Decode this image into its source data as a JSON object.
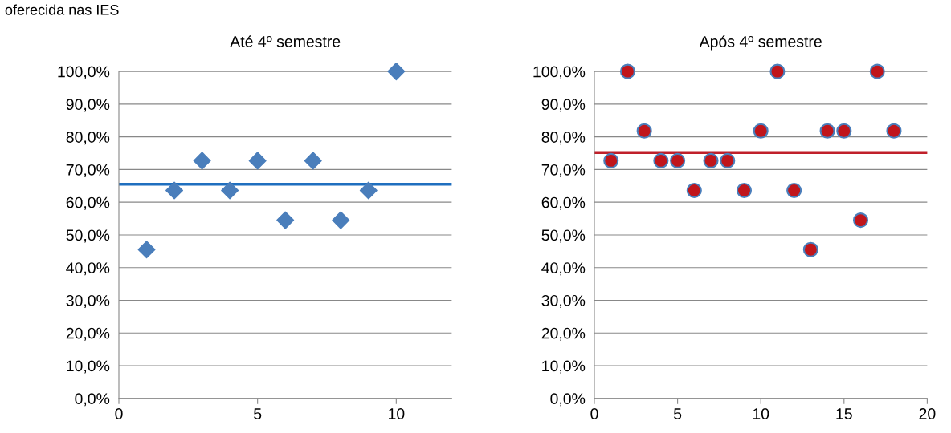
{
  "chart_data": [
    {
      "type": "scatter",
      "title": "Até 4º semestre",
      "annotations": [
        "oferecida nas IES"
      ],
      "x": [
        1,
        2,
        3,
        4,
        5,
        6,
        7,
        8,
        9,
        10
      ],
      "series": [
        {
          "color": "#4a7ebb",
          "marker": "diamond",
          "values": [
            45.5,
            63.6,
            72.7,
            63.6,
            72.7,
            54.5,
            72.7,
            54.5,
            63.6,
            100
          ]
        }
      ],
      "xlim": [
        0,
        12
      ],
      "xticks": [
        0,
        5,
        10
      ],
      "ylim": [
        0,
        100
      ],
      "yticks": [
        {
          "value": 0,
          "label": "0,0%"
        },
        {
          "value": 10,
          "label": "10,0%"
        },
        {
          "value": 20,
          "label": "20,0%"
        },
        {
          "value": 30,
          "label": "30,0%"
        },
        {
          "value": 40,
          "label": "40,0%"
        },
        {
          "value": 50,
          "label": "50,0%"
        },
        {
          "value": 60,
          "label": "60,0%"
        },
        {
          "value": 70,
          "label": "70,0%"
        },
        {
          "value": 80,
          "label": "80,0%"
        },
        {
          "value": 90,
          "label": "90,0%"
        },
        {
          "value": 100,
          "label": "100,0%"
        }
      ],
      "ref_lines": [
        {
          "axis": "y",
          "value": 65.5,
          "color": "#1f6fbf"
        }
      ],
      "grid": "y",
      "legend": false
    },
    {
      "type": "scatter",
      "title": "Após 4º semestre",
      "x": [
        1,
        2,
        3,
        4,
        5,
        6,
        7,
        8,
        9,
        10,
        11,
        12,
        13,
        14,
        15,
        16,
        17,
        18
      ],
      "series": [
        {
          "color": "#c0151b",
          "marker": "circle",
          "values": [
            72.7,
            100,
            81.8,
            72.7,
            72.7,
            63.6,
            72.7,
            72.7,
            63.6,
            81.8,
            100,
            63.6,
            45.5,
            81.8,
            81.8,
            54.5,
            100,
            81.8
          ]
        }
      ],
      "xlim": [
        0,
        20
      ],
      "xticks": [
        0,
        5,
        10,
        15,
        20
      ],
      "ylim": [
        0,
        100
      ],
      "yticks": [
        {
          "value": 0,
          "label": "0,0%"
        },
        {
          "value": 10,
          "label": "10,0%"
        },
        {
          "value": 20,
          "label": "20,0%"
        },
        {
          "value": 30,
          "label": "30,0%"
        },
        {
          "value": 40,
          "label": "40,0%"
        },
        {
          "value": 50,
          "label": "50,0%"
        },
        {
          "value": 60,
          "label": "60,0%"
        },
        {
          "value": 70,
          "label": "70,0%"
        },
        {
          "value": 80,
          "label": "80,0%"
        },
        {
          "value": 90,
          "label": "90,0%"
        },
        {
          "value": 100,
          "label": "100,0%"
        }
      ],
      "ref_lines": [
        {
          "axis": "y",
          "value": 75.2,
          "color": "#c0202a"
        }
      ],
      "grid": "y",
      "legend": false
    }
  ]
}
